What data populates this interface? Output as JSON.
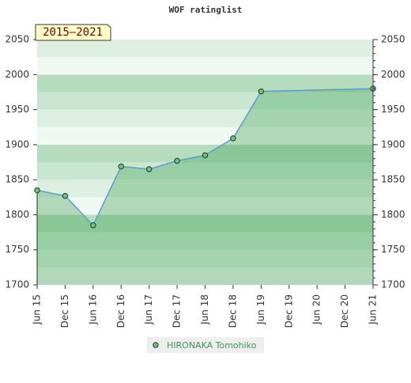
{
  "chart_data": {
    "type": "line",
    "title": "WOF ratinglist",
    "annotation": "2015–2021",
    "x": [
      0,
      6,
      12,
      18,
      24,
      30,
      36,
      42,
      48,
      72
    ],
    "xlim": [
      0,
      72
    ],
    "xticks": [
      {
        "value": 0,
        "label": "Jun 15"
      },
      {
        "value": 6,
        "label": "Dec 15"
      },
      {
        "value": 12,
        "label": "Jun 16"
      },
      {
        "value": 18,
        "label": "Dec 16"
      },
      {
        "value": 24,
        "label": "Jun 17"
      },
      {
        "value": 30,
        "label": "Dec 17"
      },
      {
        "value": 36,
        "label": "Jun 18"
      },
      {
        "value": 42,
        "label": "Dec 18"
      },
      {
        "value": 48,
        "label": "Jun 19"
      },
      {
        "value": 54,
        "label": "Dec 19"
      },
      {
        "value": 60,
        "label": "Jun 20"
      },
      {
        "value": 66,
        "label": "Dec 20"
      },
      {
        "value": 72,
        "label": "Jun 21"
      }
    ],
    "series": [
      {
        "name": "HIRONAKA Tomohiko",
        "color": "#5b9bd5",
        "marker_color": "#6fbf7f",
        "values": [
          1835,
          1827,
          1785,
          1869,
          1865,
          1877,
          1885,
          1909,
          1976,
          1980
        ]
      }
    ],
    "markers": [
      true,
      true,
      true,
      true,
      true,
      true,
      true,
      true,
      true,
      true
    ],
    "ylim": [
      1700,
      2050
    ],
    "yticks": [
      1700,
      1750,
      1800,
      1850,
      1900,
      1950,
      2000,
      2050
    ],
    "right_axis": true
  }
}
